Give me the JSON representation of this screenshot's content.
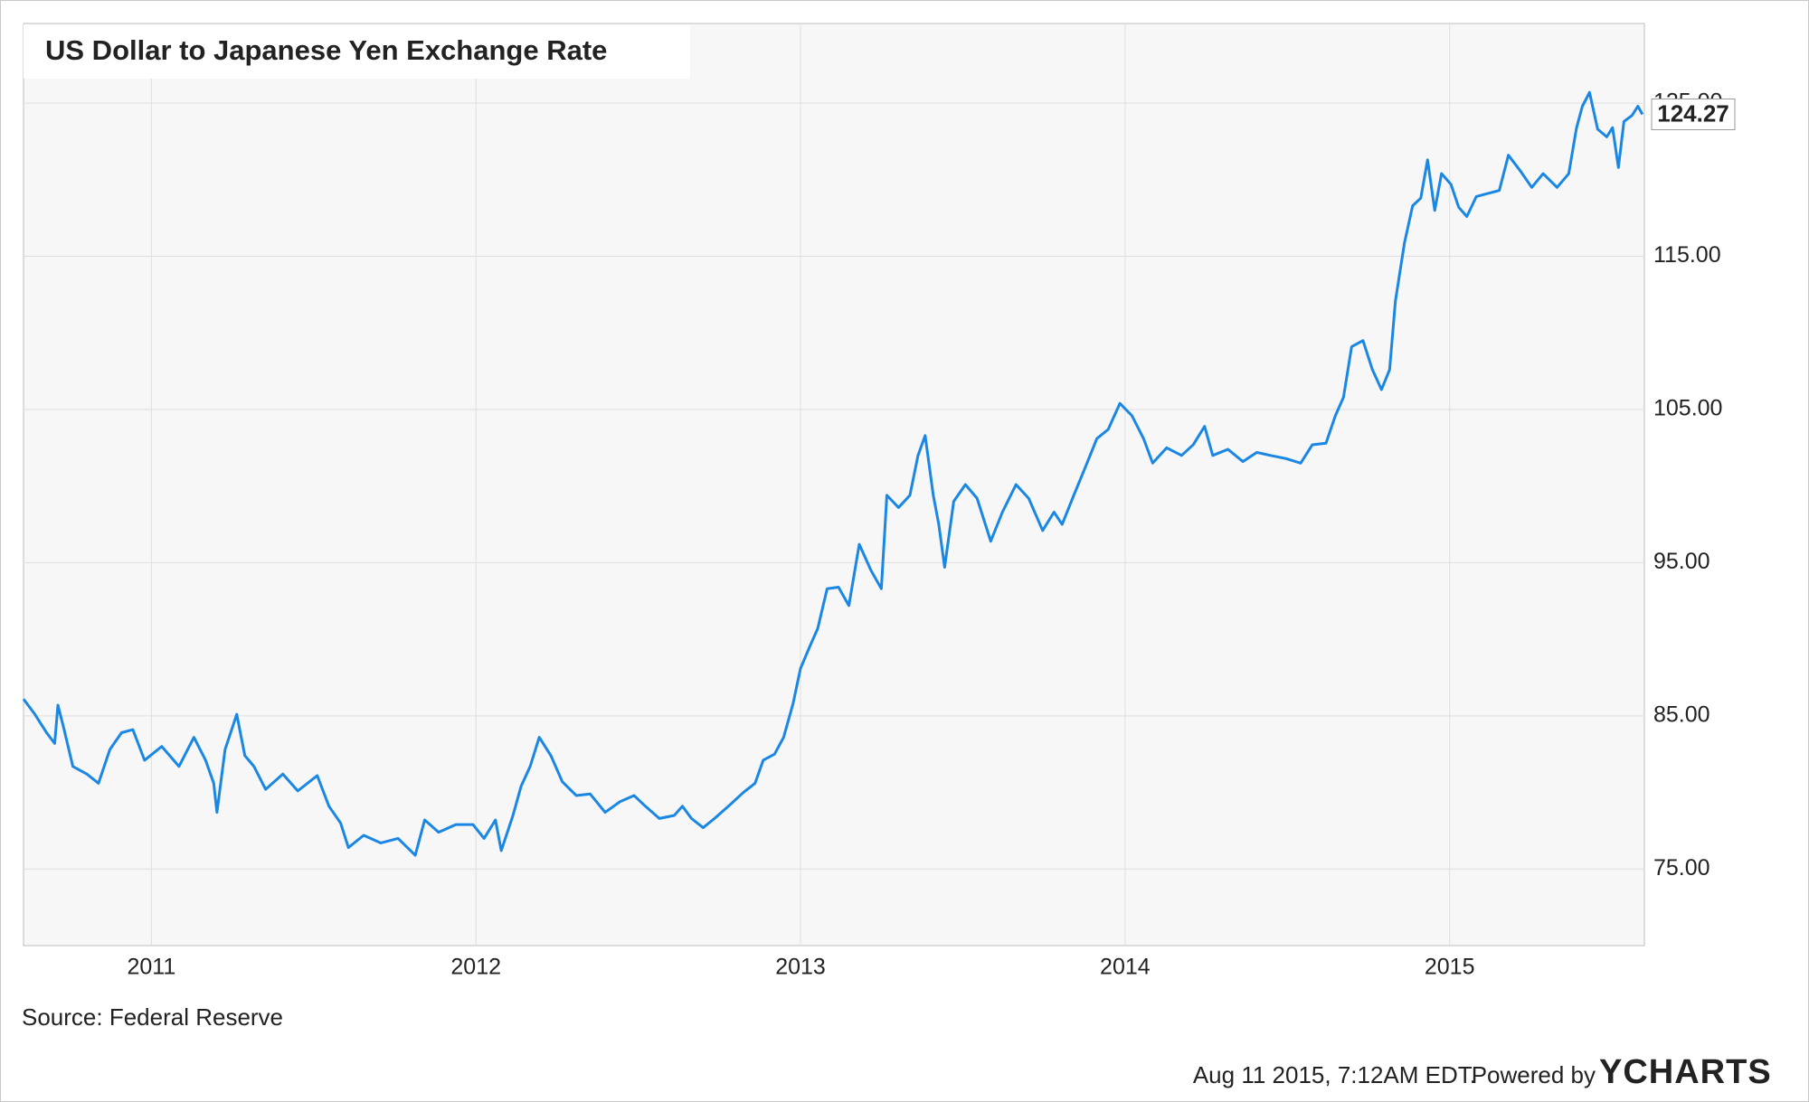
{
  "chart_data": {
    "type": "line",
    "title": "US Dollar to Japanese Yen Exchange Rate",
    "source": "Source: Federal Reserve",
    "timestamp": "Aug 11 2015, 7:12AM EDT.",
    "powered_by": "Powered by",
    "logo": "YCHARTS",
    "color": "#1a87e5",
    "grid": true,
    "xlim": [
      2010.606,
      2015.6
    ],
    "xticks": [
      2011,
      2012,
      2013,
      2014,
      2015
    ],
    "ylim": [
      70,
      130.2
    ],
    "yticks": [
      {
        "value": 75,
        "label": "75.00"
      },
      {
        "value": 85,
        "label": "85.00"
      },
      {
        "value": 95,
        "label": "95.00"
      },
      {
        "value": 105,
        "label": "105.00"
      },
      {
        "value": 115,
        "label": "115.00"
      },
      {
        "value": 125,
        "label": "125.00"
      }
    ],
    "x": [
      2010.606,
      2010.641,
      2010.677,
      2010.702,
      2010.712,
      2010.73,
      2010.758,
      2010.801,
      2010.837,
      2010.872,
      2010.908,
      2010.943,
      2010.979,
      2011.032,
      2011.085,
      2011.131,
      2011.167,
      2011.192,
      2011.202,
      2011.227,
      2011.263,
      2011.288,
      2011.316,
      2011.352,
      2011.405,
      2011.451,
      2011.511,
      2011.547,
      2011.583,
      2011.607,
      2011.654,
      2011.707,
      2011.76,
      2011.813,
      2011.842,
      2011.885,
      2011.938,
      2011.991,
      2012.025,
      2012.06,
      2012.078,
      2012.114,
      2012.139,
      2012.167,
      2012.195,
      2012.231,
      2012.266,
      2012.309,
      2012.352,
      2012.398,
      2012.444,
      2012.487,
      2012.522,
      2012.565,
      2012.611,
      2012.636,
      2012.664,
      2012.7,
      2012.735,
      2012.778,
      2012.824,
      2012.86,
      2012.885,
      2012.92,
      2012.948,
      2012.977,
      2013.0,
      2013.028,
      2013.053,
      2013.082,
      2013.117,
      2013.149,
      2013.181,
      2013.217,
      2013.249,
      2013.266,
      2013.302,
      2013.337,
      2013.362,
      2013.384,
      2013.409,
      2013.426,
      2013.444,
      2013.472,
      2013.508,
      2013.544,
      2013.586,
      2013.622,
      2013.664,
      2013.703,
      2013.746,
      2013.781,
      2013.806,
      2013.842,
      2013.877,
      2013.913,
      2013.948,
      2013.984,
      2014.021,
      2014.057,
      2014.085,
      2014.128,
      2014.174,
      2014.21,
      2014.245,
      2014.27,
      2014.317,
      2014.363,
      2014.406,
      2014.448,
      2014.495,
      2014.541,
      2014.577,
      2014.619,
      2014.648,
      2014.673,
      2014.698,
      2014.733,
      2014.762,
      2014.79,
      2014.815,
      2014.833,
      2014.861,
      2014.886,
      2014.911,
      2014.932,
      2014.954,
      2014.975,
      2015.004,
      2015.028,
      2015.053,
      2015.082,
      2015.117,
      2015.153,
      2015.181,
      2015.217,
      2015.253,
      2015.288,
      2015.331,
      2015.367,
      2015.391,
      2015.409,
      2015.431,
      2015.456,
      2015.484,
      2015.502,
      2015.52,
      2015.537,
      2015.562,
      2015.58,
      2015.594
    ],
    "values": [
      86.1,
      85.1,
      83.9,
      83.2,
      85.7,
      84.2,
      81.7,
      81.2,
      80.6,
      82.8,
      83.9,
      84.1,
      82.1,
      83.0,
      81.7,
      83.6,
      82.1,
      80.6,
      78.7,
      82.8,
      85.1,
      82.4,
      81.7,
      80.2,
      81.2,
      80.1,
      81.1,
      79.1,
      78.0,
      76.4,
      77.2,
      76.7,
      77.0,
      75.9,
      78.2,
      77.4,
      77.9,
      77.9,
      77.0,
      78.2,
      76.2,
      78.5,
      80.4,
      81.7,
      83.6,
      82.4,
      80.7,
      79.8,
      79.9,
      78.7,
      79.4,
      79.8,
      79.1,
      78.3,
      78.5,
      79.1,
      78.3,
      77.7,
      78.3,
      79.1,
      80.0,
      80.6,
      82.1,
      82.5,
      83.6,
      85.8,
      88.1,
      89.5,
      90.7,
      93.3,
      93.4,
      92.2,
      96.2,
      94.5,
      93.3,
      99.4,
      98.6,
      99.4,
      102.0,
      103.3,
      99.4,
      97.5,
      94.7,
      99.0,
      100.1,
      99.2,
      96.4,
      98.3,
      100.1,
      99.2,
      97.1,
      98.3,
      97.5,
      99.4,
      101.2,
      103.1,
      103.7,
      105.4,
      104.6,
      103.1,
      101.5,
      102.5,
      102.0,
      102.7,
      103.9,
      102.0,
      102.4,
      101.6,
      102.2,
      102.0,
      101.8,
      101.5,
      102.7,
      102.8,
      104.6,
      105.8,
      109.1,
      109.5,
      107.6,
      106.3,
      107.6,
      112.1,
      115.9,
      118.3,
      118.8,
      121.3,
      118.0,
      120.4,
      119.7,
      118.2,
      117.6,
      118.9,
      119.1,
      119.3,
      121.6,
      120.6,
      119.5,
      120.4,
      119.5,
      120.4,
      123.4,
      124.8,
      125.7,
      123.3,
      122.8,
      123.4,
      120.8,
      123.8,
      124.2,
      124.8,
      124.27
    ]
  }
}
